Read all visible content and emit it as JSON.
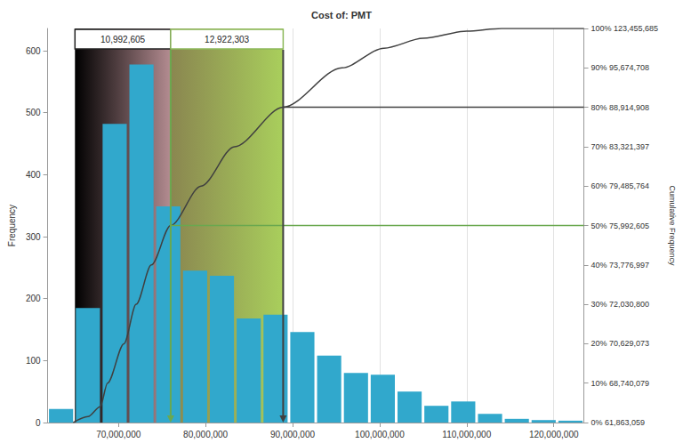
{
  "chart_data": {
    "type": "histogram",
    "title": "Cost of: PMT",
    "ylabel": "Frequency",
    "y2label": "Cumulative Frequency",
    "bins": [
      61863059,
      64942690,
      68022321,
      71101952,
      74181583,
      77261214,
      80340845,
      83420476,
      86500107,
      89579738,
      92659369,
      95739000,
      98818631,
      101898262,
      104977893,
      108057524,
      111137155,
      114216786,
      117296417,
      120376048,
      123455685
    ],
    "counts": [
      22,
      185,
      482,
      578,
      349,
      245,
      237,
      168,
      174,
      146,
      108,
      80,
      77,
      50,
      27,
      34,
      14,
      6,
      4,
      3
    ],
    "color": "#31a8cc",
    "cumulative": {
      "x": [
        64800000,
        66500000,
        67900000,
        68740079,
        70629073,
        72030800,
        73776997,
        75992605,
        79485764,
        83321397,
        88914908,
        95674708,
        100500000,
        105000000,
        110000000,
        114000000,
        123455685
      ],
      "values": [
        0,
        1.5,
        4,
        10,
        20,
        30,
        40,
        50,
        60,
        70,
        80,
        90,
        95,
        97.5,
        99.3,
        100,
        100
      ],
      "axis": "y2",
      "color": "#404040"
    },
    "bands": [
      {
        "from": 65000000,
        "to": 75992605,
        "label": "10,992,605"
      },
      {
        "from": 75992605,
        "to": 88914908,
        "label": "12,922,303"
      }
    ],
    "percentiles": [
      {
        "x": 75992605,
        "y": 50
      },
      {
        "x": 88914908,
        "y": 80
      }
    ],
    "xlim": [
      61863059,
      123455685
    ],
    "xticks": [
      {
        "value": 70000000,
        "label": "70,000,000"
      },
      {
        "value": 80000000,
        "label": "80,000,000"
      },
      {
        "value": 90000000,
        "label": "90,000,000"
      },
      {
        "value": 100000000,
        "label": "100,000,000"
      },
      {
        "value": 110000000,
        "label": "110,000,000"
      },
      {
        "value": 120000000,
        "label": "120,000,000"
      }
    ],
    "ylim": [
      0,
      636
    ],
    "yticks": [
      0,
      100,
      200,
      300,
      400,
      500,
      600
    ],
    "y2lim": [
      0,
      100
    ],
    "y2ticks": [
      {
        "value": 0,
        "label": "0% 61,863,059"
      },
      {
        "value": 10,
        "label": "10% 68,740,079"
      },
      {
        "value": 20,
        "label": "20% 70,629,073"
      },
      {
        "value": 30,
        "label": "30% 72,030,800"
      },
      {
        "value": 40,
        "label": "40% 73,776,997"
      },
      {
        "value": 50,
        "label": "50% 75,992,605"
      },
      {
        "value": 60,
        "label": "60% 79,485,764"
      },
      {
        "value": 70,
        "label": "70% 83,321,397"
      },
      {
        "value": 80,
        "label": "80% 88,914,908"
      },
      {
        "value": 90,
        "label": "90% 95,674,708"
      },
      {
        "value": 100,
        "label": "100% 123,455,685"
      }
    ],
    "grid": true
  }
}
